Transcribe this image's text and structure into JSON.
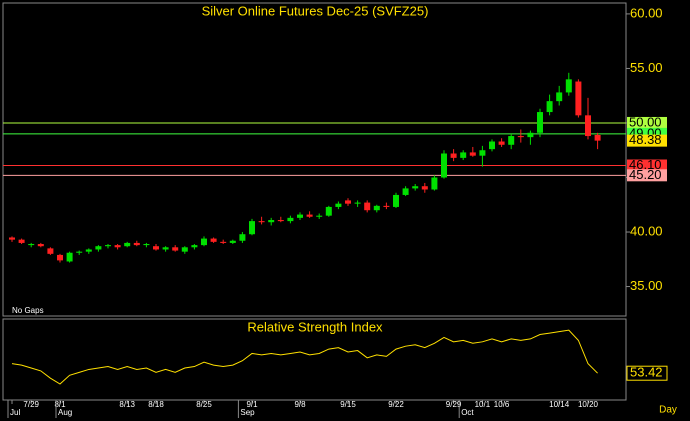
{
  "chart_data": {
    "type": "candlestick",
    "title": "Silver Online Futures Dec-25 (SVFZ25)",
    "note": "No Gaps",
    "categories": [
      "",
      "7/29",
      "8/1",
      "8/13",
      "8/18",
      "8/25",
      "9/1",
      "9/8",
      "9/15",
      "9/22",
      "9/29",
      "10/1",
      "10/6",
      "10/14",
      "10/20"
    ],
    "category_index": [
      0,
      2,
      5,
      12,
      15,
      20,
      25,
      30,
      35,
      40,
      46,
      49,
      51,
      57,
      60
    ],
    "months": [
      "Jul",
      "Aug",
      "Sep",
      "Oct"
    ],
    "month_index": [
      0,
      5,
      24,
      47
    ],
    "x_unit": "Day",
    "open": [
      39.5,
      39.3,
      38.8,
      38.9,
      38.5,
      37.9,
      37.3,
      38.1,
      38.2,
      38.4,
      38.7,
      38.8,
      38.7,
      39.0,
      38.8,
      38.7,
      38.4,
      38.6,
      38.2,
      38.6,
      38.8,
      39.4,
      39.1,
      39.0,
      39.2,
      39.8,
      41.0,
      40.9,
      41.1,
      41.0,
      41.3,
      41.6,
      41.4,
      41.5,
      42.3,
      42.9,
      42.6,
      42.7,
      42.0,
      42.4,
      42.3,
      43.4,
      44.0,
      44.2,
      43.9,
      45.0,
      47.2,
      46.8,
      47.3,
      47.0,
      47.6,
      48.3,
      48.0,
      48.8,
      48.7,
      49.1,
      51.0,
      52.0,
      52.8,
      53.8,
      50.7,
      48.9
    ],
    "high": [
      39.6,
      39.4,
      39.0,
      39.0,
      38.6,
      38.0,
      38.2,
      38.3,
      38.5,
      38.8,
      38.9,
      38.9,
      39.1,
      39.2,
      39.0,
      38.9,
      38.7,
      38.8,
      38.7,
      38.9,
      39.6,
      39.5,
      39.3,
      39.3,
      40.0,
      41.2,
      41.4,
      41.3,
      41.4,
      41.5,
      41.8,
      41.9,
      41.7,
      42.4,
      42.8,
      43.1,
      42.9,
      42.9,
      42.5,
      42.7,
      43.6,
      44.2,
      44.4,
      44.5,
      45.2,
      47.5,
      47.6,
      47.5,
      47.8,
      47.9,
      48.5,
      48.6,
      49.0,
      49.4,
      49.3,
      51.3,
      52.6,
      53.4,
      54.6,
      54.0,
      52.3,
      49.1
    ],
    "low": [
      39.1,
      38.9,
      38.6,
      38.6,
      37.9,
      37.2,
      37.2,
      37.9,
      38.0,
      38.2,
      38.5,
      38.4,
      38.6,
      38.7,
      38.6,
      38.3,
      38.2,
      38.2,
      38.0,
      38.4,
      38.7,
      39.0,
      38.9,
      38.9,
      39.0,
      39.7,
      40.7,
      40.6,
      40.9,
      40.8,
      41.1,
      41.3,
      41.2,
      41.4,
      42.1,
      42.4,
      42.3,
      41.8,
      41.8,
      42.1,
      42.2,
      43.3,
      43.8,
      43.6,
      43.8,
      44.9,
      46.5,
      46.6,
      46.9,
      46.0,
      47.4,
      47.8,
      47.6,
      48.2,
      48.0,
      48.7,
      50.7,
      51.6,
      52.5,
      50.5,
      48.5,
      47.6
    ],
    "close": [
      39.3,
      39.0,
      38.9,
      38.7,
      38.0,
      37.4,
      38.1,
      38.2,
      38.4,
      38.7,
      38.8,
      38.6,
      39.0,
      38.8,
      38.9,
      38.4,
      38.6,
      38.3,
      38.6,
      38.8,
      39.4,
      39.1,
      39.0,
      39.2,
      39.8,
      41.0,
      40.9,
      41.1,
      41.0,
      41.3,
      41.6,
      41.4,
      41.5,
      42.3,
      42.6,
      42.6,
      42.7,
      42.0,
      42.4,
      42.3,
      43.4,
      44.0,
      44.2,
      43.9,
      45.0,
      47.2,
      46.8,
      47.3,
      47.0,
      47.5,
      48.3,
      48.0,
      48.8,
      48.7,
      49.1,
      51.0,
      52.0,
      52.8,
      54.0,
      50.7,
      48.8,
      48.38
    ],
    "up_color": "#00e000",
    "down_color": "#ff2020",
    "ylim": [
      32.3,
      61.0
    ],
    "yticks": [
      {
        "value": 35,
        "label": "35.00"
      },
      {
        "value": 40,
        "label": "40.00"
      },
      {
        "value": 45,
        "label": "45.00"
      },
      {
        "value": 50,
        "label": "50.00"
      },
      {
        "value": 55,
        "label": "55.00"
      },
      {
        "value": 60,
        "label": "60.00"
      }
    ],
    "levels": [
      {
        "value": 50,
        "label": "50.00",
        "color": "#b0ff40"
      },
      {
        "value": 49,
        "label": "49.00",
        "color": "#40ff40"
      },
      {
        "value": 46.1,
        "label": "46.10",
        "color": "#ff3030"
      },
      {
        "value": 45.2,
        "label": "45.20",
        "color": "#ffa0a0"
      }
    ],
    "rsi": {
      "title": "Relative Strength Index",
      "color": "#ffe000",
      "ylim": [
        35,
        90
      ],
      "values": [
        60,
        59,
        57,
        55,
        50,
        46,
        52,
        54,
        56,
        57,
        58,
        56,
        58,
        56,
        57,
        54,
        56,
        54,
        57,
        58,
        61,
        59,
        58,
        59,
        62,
        67,
        66,
        67,
        66,
        67,
        68,
        66,
        67,
        70,
        71,
        68,
        69,
        64,
        66,
        65,
        70,
        72,
        73,
        71,
        74,
        78,
        75,
        76,
        74,
        75,
        77,
        75,
        77,
        76,
        77,
        80,
        81,
        82,
        83,
        76,
        60,
        53.42
      ]
    }
  }
}
